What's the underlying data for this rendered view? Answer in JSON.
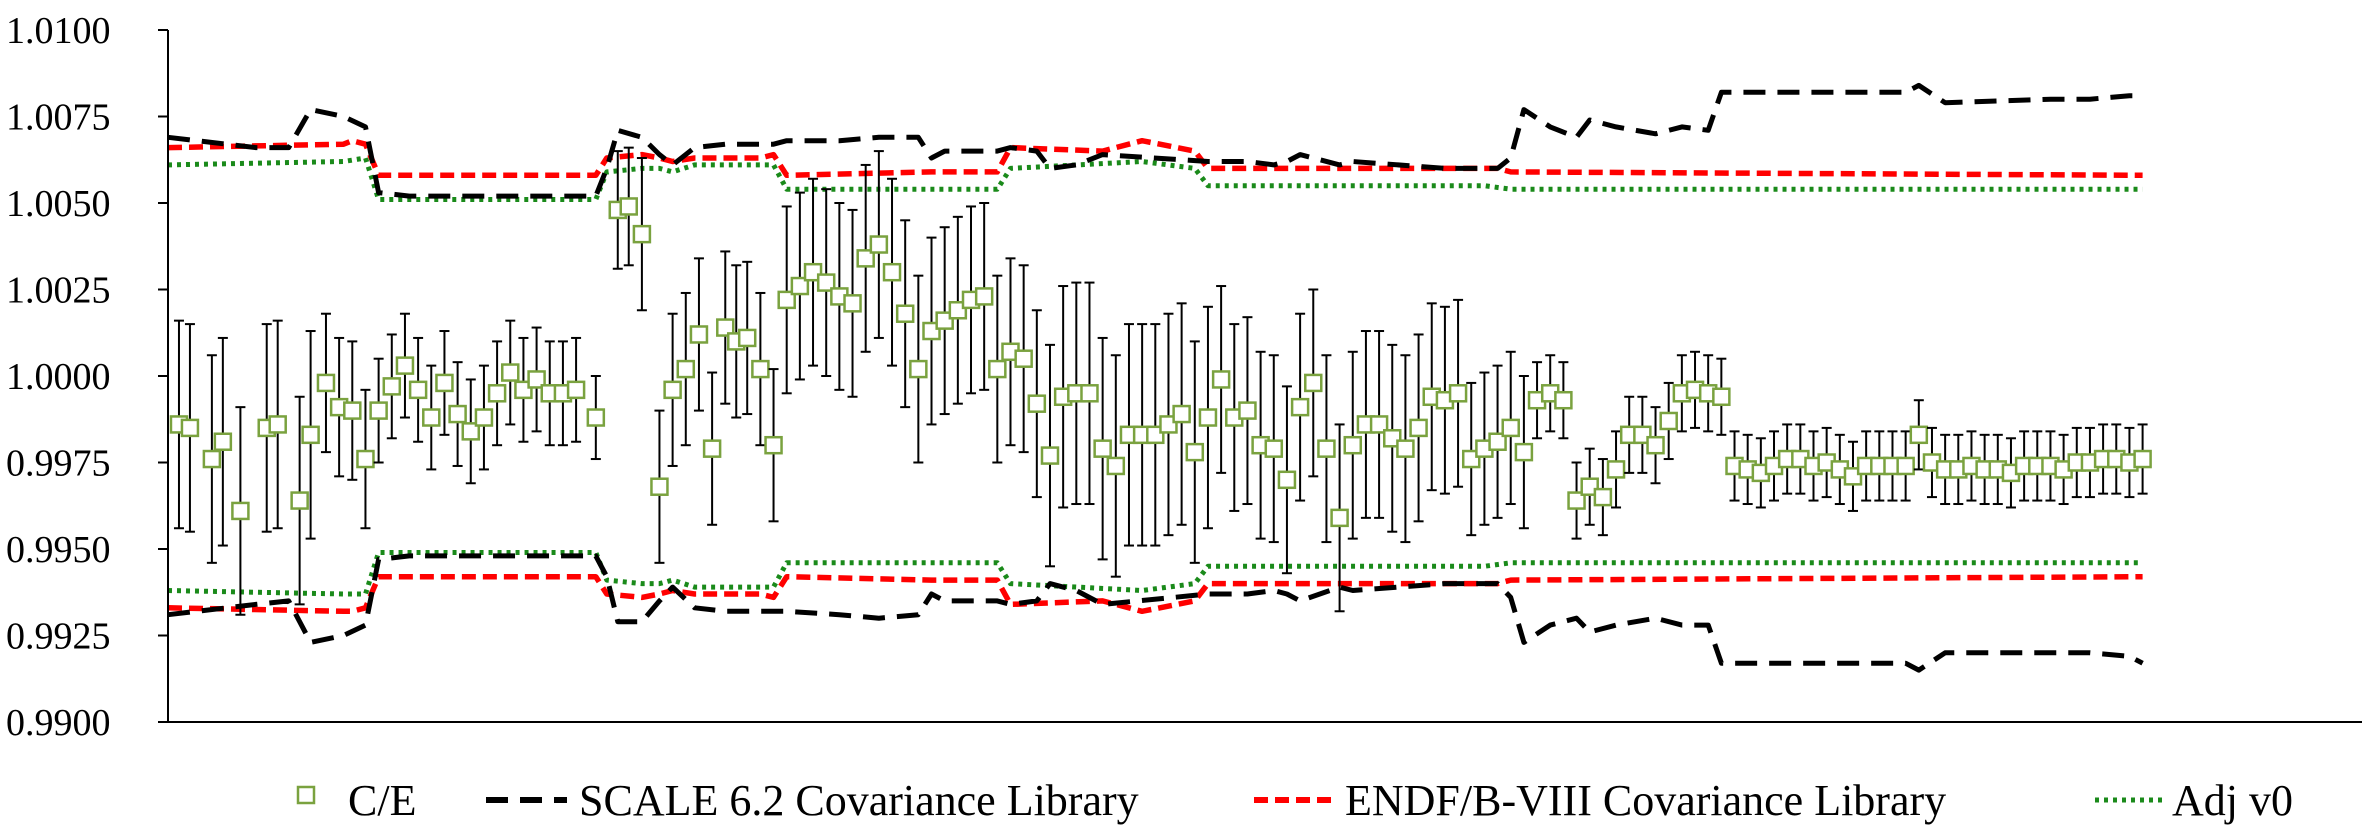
{
  "chart_data": {
    "type": "line",
    "ylim": [
      0.99,
      1.01
    ],
    "xlim": [
      0,
      100
    ],
    "y_ticks": [
      "1.0100",
      "1.0075",
      "1.0050",
      "1.0025",
      "1.0000",
      "0.9975",
      "0.9950",
      "0.9925",
      "0.9900"
    ],
    "grid": false,
    "legend_position": "bottom",
    "legend": [
      "C/E",
      "SCALE 6.2 Covariance Library",
      "ENDF/B-VIII Covariance Library",
      "Adj v0"
    ],
    "colors": {
      "ce": "#7aa23f",
      "scale": "#000000",
      "endf": "#ff0000",
      "adj": "#1a8a1a"
    },
    "ce_points": [
      [
        0.5,
        0.9986,
        0.003
      ],
      [
        1,
        0.9985,
        0.003
      ],
      [
        2,
        0.9976,
        0.003
      ],
      [
        2.5,
        0.9981,
        0.003
      ],
      [
        3.3,
        0.9961,
        0.003
      ],
      [
        4.5,
        0.9985,
        0.003
      ],
      [
        5,
        0.9986,
        0.003
      ],
      [
        6,
        0.9964,
        0.003
      ],
      [
        6.5,
        0.9983,
        0.003
      ],
      [
        7.2,
        0.9998,
        0.002
      ],
      [
        7.8,
        0.9991,
        0.002
      ],
      [
        8.4,
        0.999,
        0.002
      ],
      [
        9,
        0.9976,
        0.002
      ],
      [
        9.6,
        0.999,
        0.0015
      ],
      [
        10.2,
        0.9997,
        0.0015
      ],
      [
        10.8,
        1.0003,
        0.0015
      ],
      [
        11.4,
        0.9996,
        0.0015
      ],
      [
        12,
        0.9988,
        0.0015
      ],
      [
        12.6,
        0.9998,
        0.0015
      ],
      [
        13.2,
        0.9989,
        0.0015
      ],
      [
        13.8,
        0.9984,
        0.0015
      ],
      [
        14.4,
        0.9988,
        0.0015
      ],
      [
        15,
        0.9995,
        0.0015
      ],
      [
        15.6,
        1.0001,
        0.0015
      ],
      [
        16.2,
        0.9996,
        0.0015
      ],
      [
        16.8,
        0.9999,
        0.0015
      ],
      [
        17.4,
        0.9995,
        0.0015
      ],
      [
        18,
        0.9995,
        0.0015
      ],
      [
        18.6,
        0.9996,
        0.0015
      ],
      [
        19.5,
        0.9988,
        0.0012
      ],
      [
        20.5,
        1.0048,
        0.0017
      ],
      [
        21,
        1.0049,
        0.0017
      ],
      [
        21.6,
        1.0041,
        0.0022
      ],
      [
        22.4,
        0.9968,
        0.0022
      ],
      [
        23,
        0.9996,
        0.0022
      ],
      [
        23.6,
        1.0002,
        0.0022
      ],
      [
        24.2,
        1.0012,
        0.0022
      ],
      [
        24.8,
        0.9979,
        0.0022
      ],
      [
        25.4,
        1.0014,
        0.0022
      ],
      [
        25.9,
        1.001,
        0.0022
      ],
      [
        26.4,
        1.0011,
        0.0022
      ],
      [
        27,
        1.0002,
        0.0022
      ],
      [
        27.6,
        0.998,
        0.0022
      ],
      [
        28.2,
        1.0022,
        0.0027
      ],
      [
        28.8,
        1.0026,
        0.0027
      ],
      [
        29.4,
        1.003,
        0.0027
      ],
      [
        30,
        1.0027,
        0.0027
      ],
      [
        30.6,
        1.0023,
        0.0027
      ],
      [
        31.2,
        1.0021,
        0.0027
      ],
      [
        31.8,
        1.0034,
        0.0027
      ],
      [
        32.4,
        1.0038,
        0.0027
      ],
      [
        33,
        1.003,
        0.0027
      ],
      [
        33.6,
        1.0018,
        0.0027
      ],
      [
        34.2,
        1.0002,
        0.0027
      ],
      [
        34.8,
        1.0013,
        0.0027
      ],
      [
        35.4,
        1.0016,
        0.0027
      ],
      [
        36,
        1.0019,
        0.0027
      ],
      [
        36.6,
        1.0022,
        0.0027
      ],
      [
        37.2,
        1.0023,
        0.0027
      ],
      [
        37.8,
        1.0002,
        0.0027
      ],
      [
        38.4,
        1.0007,
        0.0027
      ],
      [
        39,
        1.0005,
        0.0027
      ],
      [
        39.6,
        0.9992,
        0.0027
      ],
      [
        40.2,
        0.9977,
        0.0032
      ],
      [
        40.8,
        0.9994,
        0.0032
      ],
      [
        41.4,
        0.9995,
        0.0032
      ],
      [
        42,
        0.9995,
        0.0032
      ],
      [
        42.6,
        0.9979,
        0.0032
      ],
      [
        43.2,
        0.9974,
        0.0032
      ],
      [
        43.8,
        0.9983,
        0.0032
      ],
      [
        44.4,
        0.9983,
        0.0032
      ],
      [
        45,
        0.9983,
        0.0032
      ],
      [
        45.6,
        0.9986,
        0.0032
      ],
      [
        46.2,
        0.9989,
        0.0032
      ],
      [
        46.8,
        0.9978,
        0.0032
      ],
      [
        47.4,
        0.9988,
        0.0032
      ],
      [
        48,
        0.9999,
        0.0027
      ],
      [
        48.6,
        0.9988,
        0.0027
      ],
      [
        49.2,
        0.999,
        0.0027
      ],
      [
        49.8,
        0.998,
        0.0027
      ],
      [
        50.4,
        0.9979,
        0.0027
      ],
      [
        51,
        0.997,
        0.0027
      ],
      [
        51.6,
        0.9991,
        0.0027
      ],
      [
        52.2,
        0.9998,
        0.0027
      ],
      [
        52.8,
        0.9979,
        0.0027
      ],
      [
        53.4,
        0.9959,
        0.0027
      ],
      [
        54,
        0.998,
        0.0027
      ],
      [
        54.6,
        0.9986,
        0.0027
      ],
      [
        55.2,
        0.9986,
        0.0027
      ],
      [
        55.8,
        0.9982,
        0.0027
      ],
      [
        56.4,
        0.9979,
        0.0027
      ],
      [
        57,
        0.9985,
        0.0027
      ],
      [
        57.6,
        0.9994,
        0.0027
      ],
      [
        58.2,
        0.9993,
        0.0027
      ],
      [
        58.8,
        0.9995,
        0.0027
      ],
      [
        59.4,
        0.9976,
        0.0022
      ],
      [
        60,
        0.9979,
        0.0022
      ],
      [
        60.6,
        0.9981,
        0.0022
      ],
      [
        61.2,
        0.9985,
        0.0022
      ],
      [
        61.8,
        0.9978,
        0.0022
      ],
      [
        62.4,
        0.9993,
        0.0011
      ],
      [
        63,
        0.9995,
        0.0011
      ],
      [
        63.6,
        0.9993,
        0.0011
      ],
      [
        64.2,
        0.9964,
        0.0011
      ],
      [
        64.8,
        0.9968,
        0.0011
      ],
      [
        65.4,
        0.9965,
        0.0011
      ],
      [
        66,
        0.9973,
        0.0011
      ],
      [
        66.6,
        0.9983,
        0.0011
      ],
      [
        67.2,
        0.9983,
        0.0011
      ],
      [
        67.8,
        0.998,
        0.0011
      ],
      [
        68.4,
        0.9987,
        0.0011
      ],
      [
        69,
        0.9995,
        0.0011
      ],
      [
        69.6,
        0.9996,
        0.0011
      ],
      [
        70.2,
        0.9995,
        0.0011
      ],
      [
        70.8,
        0.9994,
        0.0011
      ],
      [
        71.4,
        0.9974,
        0.001
      ],
      [
        72,
        0.9973,
        0.001
      ],
      [
        72.6,
        0.9972,
        0.001
      ],
      [
        73.2,
        0.9974,
        0.001
      ],
      [
        73.8,
        0.9976,
        0.001
      ],
      [
        74.4,
        0.9976,
        0.001
      ],
      [
        75,
        0.9974,
        0.001
      ],
      [
        75.6,
        0.9975,
        0.001
      ],
      [
        76.2,
        0.9973,
        0.001
      ],
      [
        76.8,
        0.9971,
        0.001
      ],
      [
        77.4,
        0.9974,
        0.001
      ],
      [
        78,
        0.9974,
        0.001
      ],
      [
        78.6,
        0.9974,
        0.001
      ],
      [
        79.2,
        0.9974,
        0.001
      ],
      [
        79.8,
        0.9983,
        0.001
      ],
      [
        80.4,
        0.9975,
        0.001
      ],
      [
        81,
        0.9973,
        0.001
      ],
      [
        81.6,
        0.9973,
        0.001
      ],
      [
        82.2,
        0.9974,
        0.001
      ],
      [
        82.8,
        0.9973,
        0.001
      ],
      [
        83.4,
        0.9973,
        0.001
      ],
      [
        84,
        0.9972,
        0.001
      ],
      [
        84.6,
        0.9974,
        0.001
      ],
      [
        85.2,
        0.9974,
        0.001
      ],
      [
        85.8,
        0.9974,
        0.001
      ],
      [
        86.4,
        0.9973,
        0.001
      ],
      [
        87,
        0.9975,
        0.001
      ],
      [
        87.6,
        0.9975,
        0.001
      ],
      [
        88.2,
        0.9976,
        0.001
      ],
      [
        88.8,
        0.9976,
        0.001
      ],
      [
        89.4,
        0.9975,
        0.001
      ],
      [
        90,
        0.9976,
        0.001
      ]
    ],
    "scale_upper": [
      [
        0,
        1.0069
      ],
      [
        4,
        1.0066
      ],
      [
        5.5,
        1.0066
      ],
      [
        6.5,
        1.0077
      ],
      [
        8,
        1.0075
      ],
      [
        9,
        1.0072
      ],
      [
        9.6,
        1.0053
      ],
      [
        11,
        1.0052
      ],
      [
        19.5,
        1.0052
      ],
      [
        20,
        1.006
      ],
      [
        20.5,
        1.0071
      ],
      [
        21.6,
        1.0069
      ],
      [
        22.4,
        1.0064
      ],
      [
        23,
        1.0061
      ],
      [
        24,
        1.0066
      ],
      [
        25.4,
        1.0067
      ],
      [
        27.6,
        1.0067
      ],
      [
        28.2,
        1.0068
      ],
      [
        30.6,
        1.0068
      ],
      [
        32.4,
        1.0069
      ],
      [
        34.2,
        1.0069
      ],
      [
        34.8,
        1.0063
      ],
      [
        35.4,
        1.0065
      ],
      [
        37.8,
        1.0065
      ],
      [
        38.4,
        1.0066
      ],
      [
        39.6,
        1.0065
      ],
      [
        40.2,
        1.006
      ],
      [
        41.4,
        1.0061
      ],
      [
        42.6,
        1.0064
      ],
      [
        47.4,
        1.0062
      ],
      [
        49.2,
        1.0062
      ],
      [
        50.4,
        1.0061
      ],
      [
        51,
        1.0062
      ],
      [
        51.6,
        1.0064
      ],
      [
        53.4,
        1.0061
      ],
      [
        54,
        1.0062
      ],
      [
        58.2,
        1.006
      ],
      [
        60.6,
        1.006
      ],
      [
        61.2,
        1.0063
      ],
      [
        61.8,
        1.0077
      ],
      [
        63,
        1.0072
      ],
      [
        64.2,
        1.0069
      ],
      [
        64.8,
        1.0074
      ],
      [
        66,
        1.0072
      ],
      [
        67.8,
        1.007
      ],
      [
        69,
        1.0072
      ],
      [
        70.2,
        1.0071
      ],
      [
        70.8,
        1.0082
      ],
      [
        73.2,
        1.0082
      ],
      [
        79.2,
        1.0082
      ],
      [
        79.8,
        1.0084
      ],
      [
        81,
        1.0079
      ],
      [
        85.8,
        1.008
      ],
      [
        87.6,
        1.008
      ],
      [
        89.4,
        1.0081
      ],
      [
        90,
        1.0081
      ]
    ],
    "scale_lower": [
      [
        0,
        0.9931
      ],
      [
        4,
        0.9934
      ],
      [
        5.5,
        0.9935
      ],
      [
        6.5,
        0.9923
      ],
      [
        8,
        0.9925
      ],
      [
        9,
        0.9928
      ],
      [
        9.6,
        0.9947
      ],
      [
        11,
        0.9948
      ],
      [
        19.5,
        0.9948
      ],
      [
        20,
        0.9942
      ],
      [
        20.5,
        0.9929
      ],
      [
        21.6,
        0.9929
      ],
      [
        22.4,
        0.9935
      ],
      [
        23,
        0.9939
      ],
      [
        24,
        0.9933
      ],
      [
        25.4,
        0.9932
      ],
      [
        27.6,
        0.9932
      ],
      [
        28.2,
        0.9932
      ],
      [
        30.6,
        0.9931
      ],
      [
        32.4,
        0.993
      ],
      [
        34.2,
        0.9931
      ],
      [
        34.8,
        0.9937
      ],
      [
        35.4,
        0.9935
      ],
      [
        37.8,
        0.9935
      ],
      [
        38.4,
        0.9934
      ],
      [
        39.6,
        0.9935
      ],
      [
        40.2,
        0.994
      ],
      [
        41.4,
        0.9938
      ],
      [
        42.6,
        0.9934
      ],
      [
        47.4,
        0.9937
      ],
      [
        49.2,
        0.9937
      ],
      [
        50.4,
        0.9938
      ],
      [
        51,
        0.9937
      ],
      [
        51.6,
        0.9935
      ],
      [
        53.4,
        0.9939
      ],
      [
        54,
        0.9938
      ],
      [
        58.2,
        0.994
      ],
      [
        60.6,
        0.994
      ],
      [
        61.2,
        0.9936
      ],
      [
        61.8,
        0.9923
      ],
      [
        63,
        0.9928
      ],
      [
        64.2,
        0.993
      ],
      [
        64.8,
        0.9926
      ],
      [
        66,
        0.9928
      ],
      [
        67.8,
        0.993
      ],
      [
        69,
        0.9928
      ],
      [
        70.2,
        0.9928
      ],
      [
        70.8,
        0.9917
      ],
      [
        73.2,
        0.9917
      ],
      [
        79.2,
        0.9917
      ],
      [
        79.8,
        0.9915
      ],
      [
        81,
        0.992
      ],
      [
        85.8,
        0.992
      ],
      [
        87.6,
        0.992
      ],
      [
        89.4,
        0.9919
      ],
      [
        90,
        0.9917
      ]
    ],
    "endf_upper": [
      [
        0,
        1.0066
      ],
      [
        8,
        1.0067
      ],
      [
        8.4,
        1.0068
      ],
      [
        9,
        1.0067
      ],
      [
        9.6,
        1.0058
      ],
      [
        19.5,
        1.0058
      ],
      [
        20,
        1.0063
      ],
      [
        21.6,
        1.0064
      ],
      [
        22.4,
        1.0063
      ],
      [
        23,
        1.0062
      ],
      [
        24,
        1.0063
      ],
      [
        27,
        1.0063
      ],
      [
        27.6,
        1.0064
      ],
      [
        28.2,
        1.0058
      ],
      [
        34.8,
        1.0059
      ],
      [
        37.8,
        1.0059
      ],
      [
        38.4,
        1.0066
      ],
      [
        42.6,
        1.0065
      ],
      [
        44.4,
        1.0068
      ],
      [
        46.8,
        1.0065
      ],
      [
        47.4,
        1.006
      ],
      [
        58.2,
        1.006
      ],
      [
        60.6,
        1.006
      ],
      [
        61.2,
        1.0059
      ],
      [
        90,
        1.0058
      ]
    ],
    "endf_lower": [
      [
        0,
        0.9933
      ],
      [
        8,
        0.9932
      ],
      [
        8.4,
        0.9932
      ],
      [
        9,
        0.9933
      ],
      [
        9.6,
        0.9942
      ],
      [
        19.5,
        0.9942
      ],
      [
        20,
        0.9937
      ],
      [
        21.6,
        0.9936
      ],
      [
        22.4,
        0.9937
      ],
      [
        23,
        0.9938
      ],
      [
        24,
        0.9937
      ],
      [
        27,
        0.9937
      ],
      [
        27.6,
        0.9936
      ],
      [
        28.2,
        0.9942
      ],
      [
        34.8,
        0.9941
      ],
      [
        37.8,
        0.9941
      ],
      [
        38.4,
        0.9934
      ],
      [
        42.6,
        0.9935
      ],
      [
        44.4,
        0.9932
      ],
      [
        46.8,
        0.9935
      ],
      [
        47.4,
        0.994
      ],
      [
        58.2,
        0.994
      ],
      [
        60.6,
        0.994
      ],
      [
        61.2,
        0.9941
      ],
      [
        90,
        0.9942
      ]
    ],
    "adj_upper": [
      [
        0,
        1.0061
      ],
      [
        8,
        1.0062
      ],
      [
        9,
        1.0063
      ],
      [
        9.6,
        1.0051
      ],
      [
        19.5,
        1.0051
      ],
      [
        20,
        1.0059
      ],
      [
        21.6,
        1.006
      ],
      [
        22.4,
        1.006
      ],
      [
        23,
        1.0059
      ],
      [
        24,
        1.0061
      ],
      [
        27.6,
        1.0061
      ],
      [
        28.2,
        1.0054
      ],
      [
        37.8,
        1.0054
      ],
      [
        38.4,
        1.006
      ],
      [
        44.4,
        1.0062
      ],
      [
        46.8,
        1.006
      ],
      [
        47.4,
        1.0055
      ],
      [
        58.2,
        1.0055
      ],
      [
        60,
        1.0055
      ],
      [
        61.2,
        1.0054
      ],
      [
        90,
        1.0054
      ]
    ],
    "adj_lower": [
      [
        0,
        0.9938
      ],
      [
        8,
        0.9937
      ],
      [
        9,
        0.9937
      ],
      [
        9.6,
        0.9949
      ],
      [
        19.5,
        0.9949
      ],
      [
        20,
        0.9941
      ],
      [
        21.6,
        0.994
      ],
      [
        22.4,
        0.994
      ],
      [
        23,
        0.9941
      ],
      [
        24,
        0.9939
      ],
      [
        27.6,
        0.9939
      ],
      [
        28.2,
        0.9946
      ],
      [
        37.8,
        0.9946
      ],
      [
        38.4,
        0.994
      ],
      [
        44.4,
        0.9938
      ],
      [
        46.8,
        0.994
      ],
      [
        47.4,
        0.9945
      ],
      [
        58.2,
        0.9945
      ],
      [
        60,
        0.9945
      ],
      [
        61.2,
        0.9946
      ],
      [
        90,
        0.9946
      ]
    ]
  }
}
